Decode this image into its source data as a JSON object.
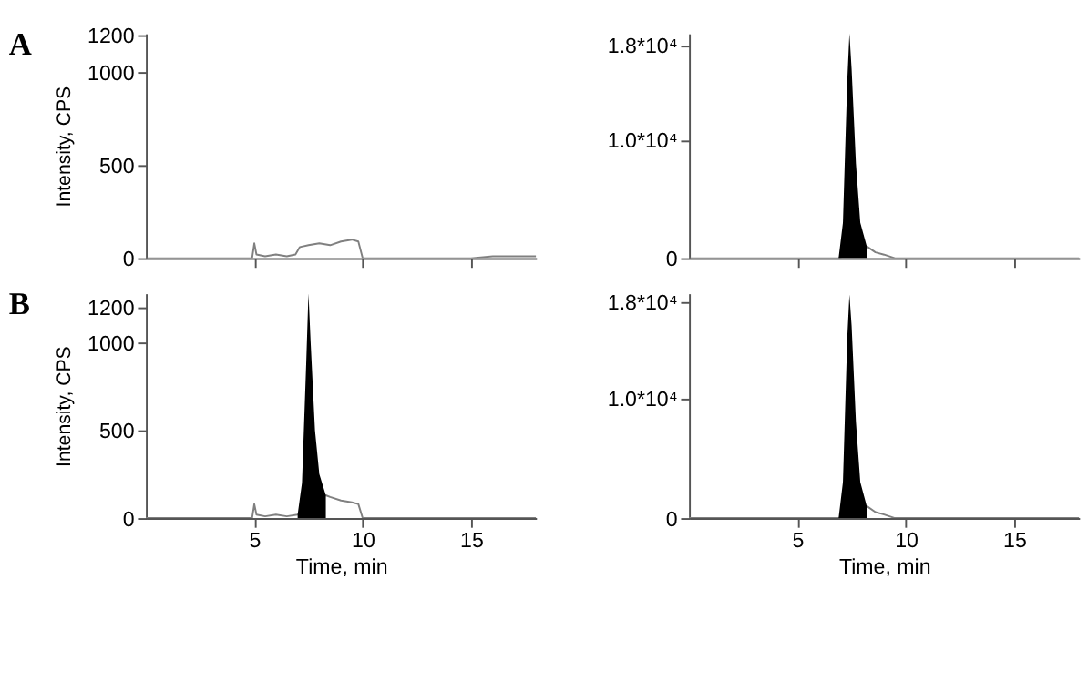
{
  "chart_data": [
    {
      "type": "line",
      "ylabel": "Intensity, CPS",
      "annotations": [
        "A"
      ],
      "xlim": [
        0,
        18
      ],
      "xticks": [
        5,
        10,
        15
      ],
      "ylim": [
        0,
        1210
      ],
      "yticks": [
        0,
        500,
        1000,
        1200
      ],
      "tick_labels": "y",
      "grid": false,
      "series": [
        {
          "color": "#808080",
          "x": [
            0,
            4.9,
            5.0,
            5.1,
            5.5,
            6.0,
            6.5,
            6.9,
            7.1,
            7.5,
            8.0,
            8.5,
            9.0,
            9.5,
            9.8,
            10.0,
            10.2,
            15,
            16,
            18
          ],
          "values": [
            0,
            0,
            80,
            20,
            10,
            20,
            10,
            20,
            60,
            70,
            80,
            70,
            90,
            100,
            90,
            0,
            0,
            0,
            10,
            10
          ]
        }
      ]
    },
    {
      "type": "line",
      "xlim": [
        0,
        18
      ],
      "xticks": [
        5,
        10,
        15
      ],
      "ylim": [
        0,
        19000
      ],
      "yticks": [
        0,
        {
          "value": 10000,
          "label": "1.0*10⁴"
        },
        {
          "value": 18000,
          "label": "1.8*10⁴"
        }
      ],
      "tick_labels": "y",
      "grid": false,
      "series": [
        {
          "color": "#808080",
          "x": [
            0,
            6.9,
            8.2,
            8.6,
            9.0,
            9.5,
            18
          ],
          "values": [
            0,
            0,
            1000,
            500,
            300,
            0,
            0
          ]
        },
        {
          "type": "area",
          "color": "#000000",
          "x": [
            6.9,
            7.1,
            7.3,
            7.4,
            7.5,
            7.7,
            7.9,
            8.2
          ],
          "values": [
            0,
            3000,
            15000,
            19000,
            16000,
            8000,
            3000,
            1000
          ]
        }
      ]
    },
    {
      "type": "line",
      "xlabel": "Time, min",
      "ylabel": "Intensity, CPS",
      "annotations": [
        "B"
      ],
      "xlim": [
        0,
        18
      ],
      "xticks": [
        5,
        10,
        15
      ],
      "ylim": [
        0,
        1280
      ],
      "yticks": [
        0,
        500,
        1000,
        1200
      ],
      "grid": false,
      "series": [
        {
          "color": "#808080",
          "x": [
            0,
            4.9,
            5.0,
            5.1,
            5.5,
            6.0,
            6.5,
            7.0,
            8.3,
            8.5,
            9.0,
            9.5,
            9.8,
            10.0,
            10.2,
            18
          ],
          "values": [
            0,
            0,
            80,
            20,
            10,
            20,
            10,
            20,
            130,
            120,
            100,
            90,
            80,
            0,
            0,
            0
          ]
        },
        {
          "type": "area",
          "color": "#000000",
          "x": [
            7.0,
            7.2,
            7.4,
            7.5,
            7.6,
            7.8,
            8.0,
            8.3
          ],
          "values": [
            20,
            200,
            900,
            1280,
            1000,
            500,
            250,
            130
          ]
        }
      ]
    },
    {
      "type": "line",
      "xlabel": "Time, min",
      "xlim": [
        0,
        18
      ],
      "xticks": [
        5,
        10,
        15
      ],
      "ylim": [
        0,
        18700
      ],
      "yticks": [
        0,
        {
          "value": 10000,
          "label": "1.0*10⁴"
        },
        {
          "value": 18000,
          "label": "1.8*10⁴"
        }
      ],
      "grid": false,
      "series": [
        {
          "color": "#808080",
          "x": [
            0,
            6.9,
            8.2,
            8.6,
            9.0,
            9.5,
            18
          ],
          "values": [
            0,
            0,
            1000,
            500,
            300,
            0,
            0
          ]
        },
        {
          "type": "area",
          "color": "#000000",
          "x": [
            6.9,
            7.1,
            7.3,
            7.4,
            7.5,
            7.7,
            7.9,
            8.2
          ],
          "values": [
            0,
            3000,
            15000,
            18600,
            16000,
            8000,
            3000,
            1000
          ]
        }
      ]
    }
  ]
}
